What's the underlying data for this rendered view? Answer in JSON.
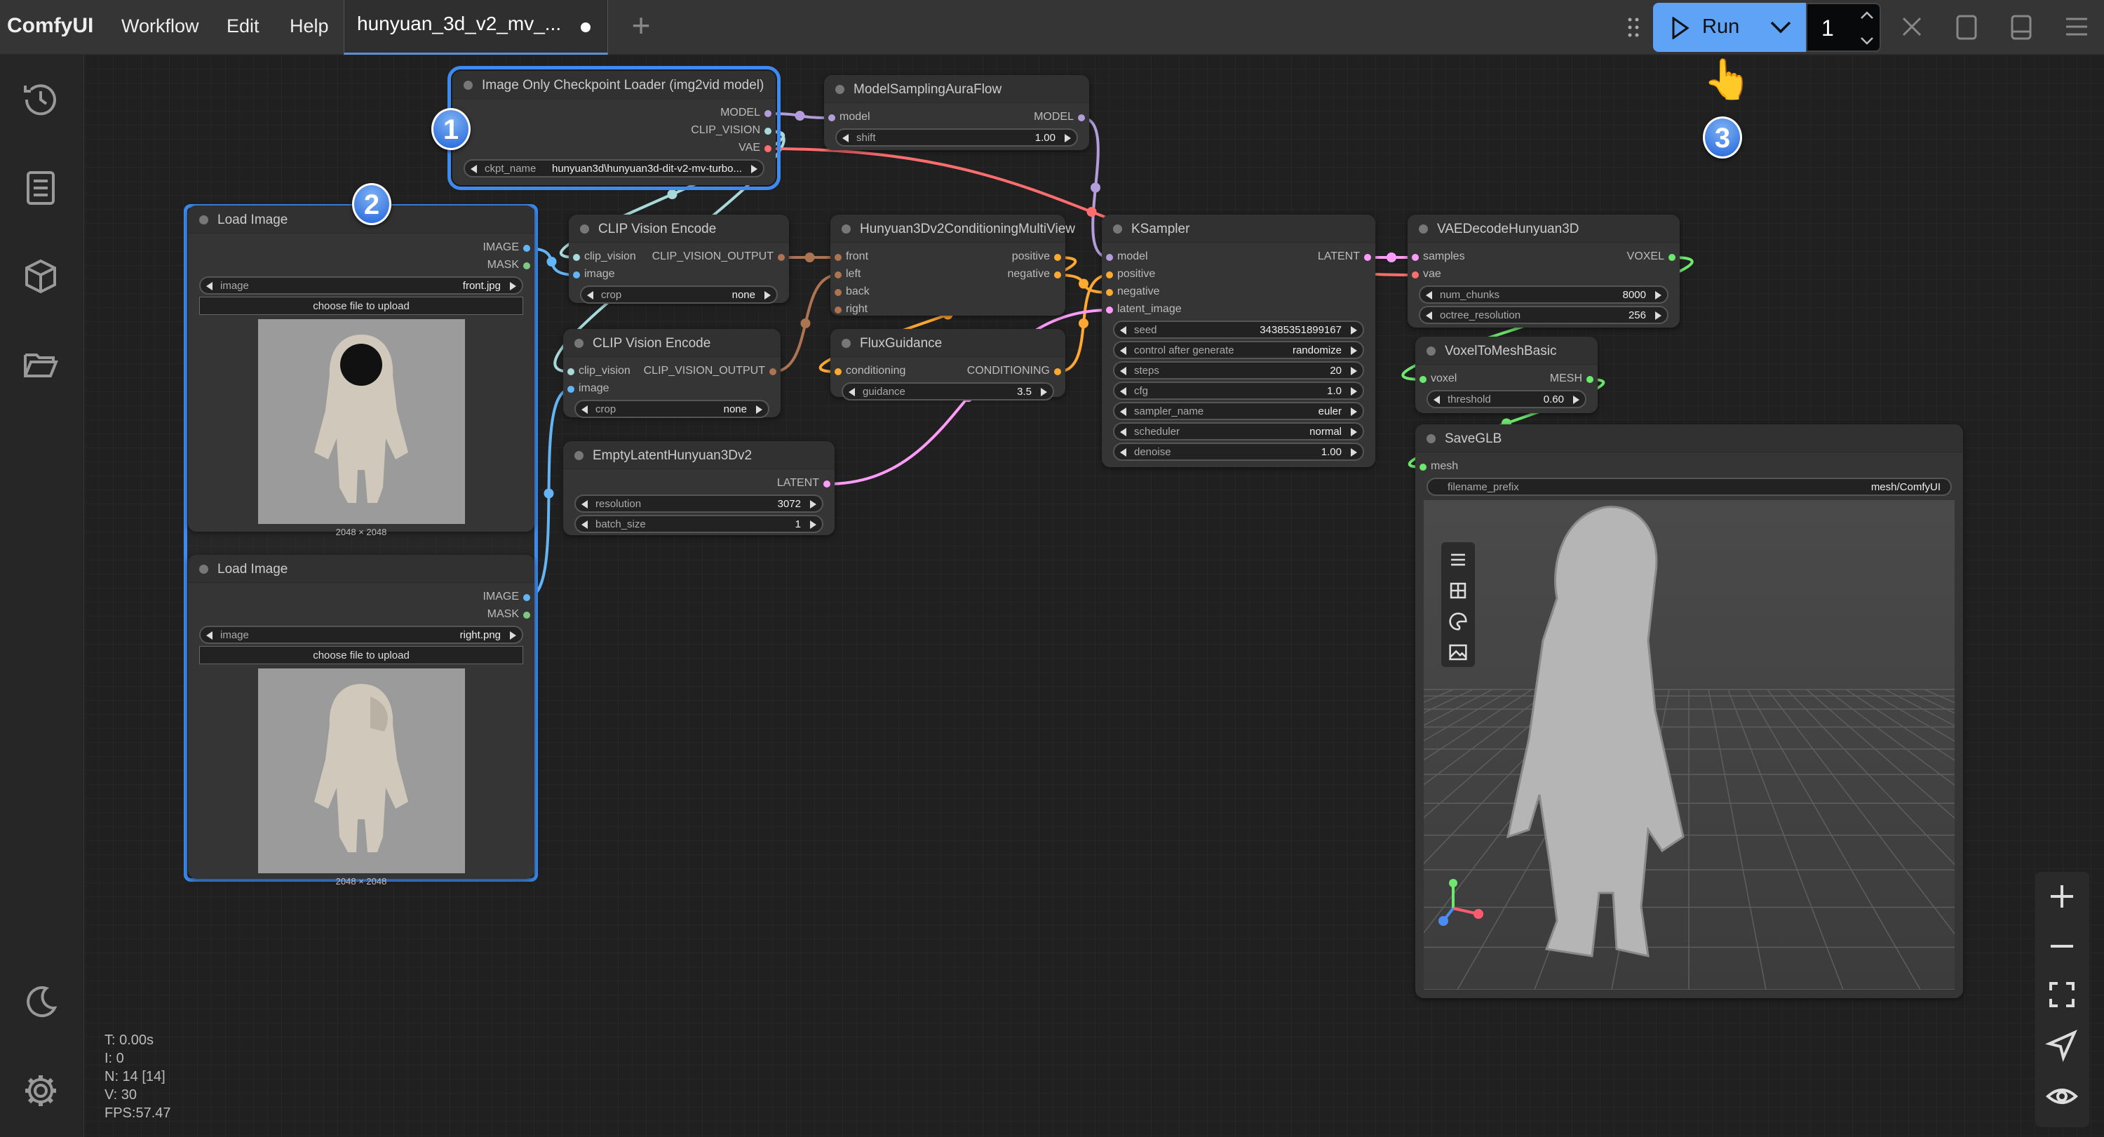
{
  "topbar": {
    "logo": "ComfyUI",
    "menu": [
      "Workflow",
      "Edit",
      "Help"
    ],
    "tab_title": "hunyuan_3d_v2_mv_...",
    "tab_unsaved": true,
    "run_label": "Run",
    "queue_count": "1"
  },
  "sidebar": {
    "icons": [
      "history-icon",
      "queue-list-icon",
      "model-cube-icon",
      "workflow-folder-icon",
      "theme-moon-icon",
      "settings-gear-icon"
    ]
  },
  "badges": [
    "1",
    "2",
    "3"
  ],
  "colors": {
    "accent": "#3d8bf2",
    "run": "#5fa3f7",
    "MODEL": "#b39ddb",
    "CLIP_VISION": "#a8dadc",
    "VAE": "#ff6e6e",
    "IMAGE": "#64b5f6",
    "MASK": "#81c784",
    "CLIP_VISION_OUTPUT": "#ad7452",
    "CONDITIONING": "#ffa931",
    "LATENT": "#ff9cf9",
    "VOXEL": "#6ee86e",
    "MESH": "#6ee86e"
  },
  "nodes": [
    {
      "title": "Image Only Checkpoint Loader (img2vid model)",
      "inputs": [],
      "outputs": [
        {
          "name": "MODEL",
          "type": "MODEL"
        },
        {
          "name": "CLIP_VISION",
          "type": "CLIP_VISION"
        },
        {
          "name": "VAE",
          "type": "VAE"
        }
      ],
      "widgets": [
        {
          "name": "ckpt_name",
          "value": "hunyuan3d\\hunyuan3d-dit-v2-mv-turbo..."
        }
      ]
    },
    {
      "title": "ModelSamplingAuraFlow",
      "inputs": [
        {
          "name": "model",
          "type": "MODEL"
        }
      ],
      "outputs": [
        {
          "name": "MODEL",
          "type": "MODEL"
        }
      ],
      "widgets": [
        {
          "name": "shift",
          "value": "1.00"
        }
      ]
    },
    {
      "title": "Load Image",
      "inputs": [],
      "outputs": [
        {
          "name": "IMAGE",
          "type": "IMAGE"
        },
        {
          "name": "MASK",
          "type": "MASK"
        }
      ],
      "widgets": [
        {
          "name": "image",
          "value": "front.jpg"
        }
      ],
      "upload_label": "choose file to upload",
      "image_size": "2048 × 2048"
    },
    {
      "title": "Load Image",
      "inputs": [],
      "outputs": [
        {
          "name": "IMAGE",
          "type": "IMAGE"
        },
        {
          "name": "MASK",
          "type": "MASK"
        }
      ],
      "widgets": [
        {
          "name": "image",
          "value": "right.png"
        }
      ],
      "upload_label": "choose file to upload",
      "image_size": "2048 × 2048"
    },
    {
      "title": "CLIP Vision Encode",
      "inputs": [
        {
          "name": "clip_vision",
          "type": "CLIP_VISION"
        },
        {
          "name": "image",
          "type": "IMAGE"
        }
      ],
      "outputs": [
        {
          "name": "CLIP_VISION_OUTPUT",
          "type": "CLIP_VISION_OUTPUT"
        }
      ],
      "widgets": [
        {
          "name": "crop",
          "value": "none"
        }
      ]
    },
    {
      "title": "Hunyuan3Dv2ConditioningMultiView",
      "inputs": [
        {
          "name": "front",
          "type": "CLIP_VISION_OUTPUT"
        },
        {
          "name": "left",
          "type": "CLIP_VISION_OUTPUT"
        },
        {
          "name": "back",
          "type": "CLIP_VISION_OUTPUT"
        },
        {
          "name": "right",
          "type": "CLIP_VISION_OUTPUT"
        }
      ],
      "outputs": [
        {
          "name": "positive",
          "type": "CONDITIONING"
        },
        {
          "name": "negative",
          "type": "CONDITIONING"
        }
      ],
      "widgets": []
    },
    {
      "title": "CLIP Vision Encode",
      "inputs": [
        {
          "name": "clip_vision",
          "type": "CLIP_VISION"
        },
        {
          "name": "image",
          "type": "IMAGE"
        }
      ],
      "outputs": [
        {
          "name": "CLIP_VISION_OUTPUT",
          "type": "CLIP_VISION_OUTPUT"
        }
      ],
      "widgets": [
        {
          "name": "crop",
          "value": "none"
        }
      ]
    },
    {
      "title": "FluxGuidance",
      "inputs": [
        {
          "name": "conditioning",
          "type": "CONDITIONING"
        }
      ],
      "outputs": [
        {
          "name": "CONDITIONING",
          "type": "CONDITIONING"
        }
      ],
      "widgets": [
        {
          "name": "guidance",
          "value": "3.5"
        }
      ]
    },
    {
      "title": "EmptyLatentHunyuan3Dv2",
      "inputs": [],
      "outputs": [
        {
          "name": "LATENT",
          "type": "LATENT"
        }
      ],
      "widgets": [
        {
          "name": "resolution",
          "value": "3072"
        },
        {
          "name": "batch_size",
          "value": "1"
        }
      ]
    },
    {
      "title": "KSampler",
      "inputs": [
        {
          "name": "model",
          "type": "MODEL"
        },
        {
          "name": "positive",
          "type": "CONDITIONING"
        },
        {
          "name": "negative",
          "type": "CONDITIONING"
        },
        {
          "name": "latent_image",
          "type": "LATENT"
        }
      ],
      "outputs": [
        {
          "name": "LATENT",
          "type": "LATENT"
        }
      ],
      "widgets": [
        {
          "name": "seed",
          "value": "34385351899167"
        },
        {
          "name": "control after generate",
          "value": "randomize"
        },
        {
          "name": "steps",
          "value": "20"
        },
        {
          "name": "cfg",
          "value": "1.0"
        },
        {
          "name": "sampler_name",
          "value": "euler"
        },
        {
          "name": "scheduler",
          "value": "normal"
        },
        {
          "name": "denoise",
          "value": "1.00"
        }
      ]
    },
    {
      "title": "VAEDecodeHunyuan3D",
      "inputs": [
        {
          "name": "samples",
          "type": "LATENT"
        },
        {
          "name": "vae",
          "type": "VAE"
        }
      ],
      "outputs": [
        {
          "name": "VOXEL",
          "type": "VOXEL"
        }
      ],
      "widgets": [
        {
          "name": "num_chunks",
          "value": "8000"
        },
        {
          "name": "octree_resolution",
          "value": "256"
        }
      ]
    },
    {
      "title": "VoxelToMeshBasic",
      "inputs": [
        {
          "name": "voxel",
          "type": "VOXEL"
        }
      ],
      "outputs": [
        {
          "name": "MESH",
          "type": "MESH"
        }
      ],
      "widgets": [
        {
          "name": "threshold",
          "value": "0.60"
        }
      ]
    },
    {
      "title": "SaveGLB",
      "inputs": [
        {
          "name": "mesh",
          "type": "MESH"
        }
      ],
      "outputs": [],
      "widgets": [
        {
          "name": "filename_prefix",
          "value": "mesh/ComfyUI",
          "plain": true
        }
      ],
      "viewer_tools": [
        "menu-icon",
        "grid-icon",
        "palette-icon",
        "image-icon"
      ]
    }
  ],
  "stats": {
    "t": "T: 0.00s",
    "i": "I: 0",
    "n": "N: 14 [14]",
    "v": "V: 30",
    "fps": "FPS:57.47"
  },
  "canvas_controls": [
    "zoom-in-icon",
    "zoom-out-icon",
    "fit-view-icon",
    "locate-icon",
    "toggle-links-icon"
  ]
}
